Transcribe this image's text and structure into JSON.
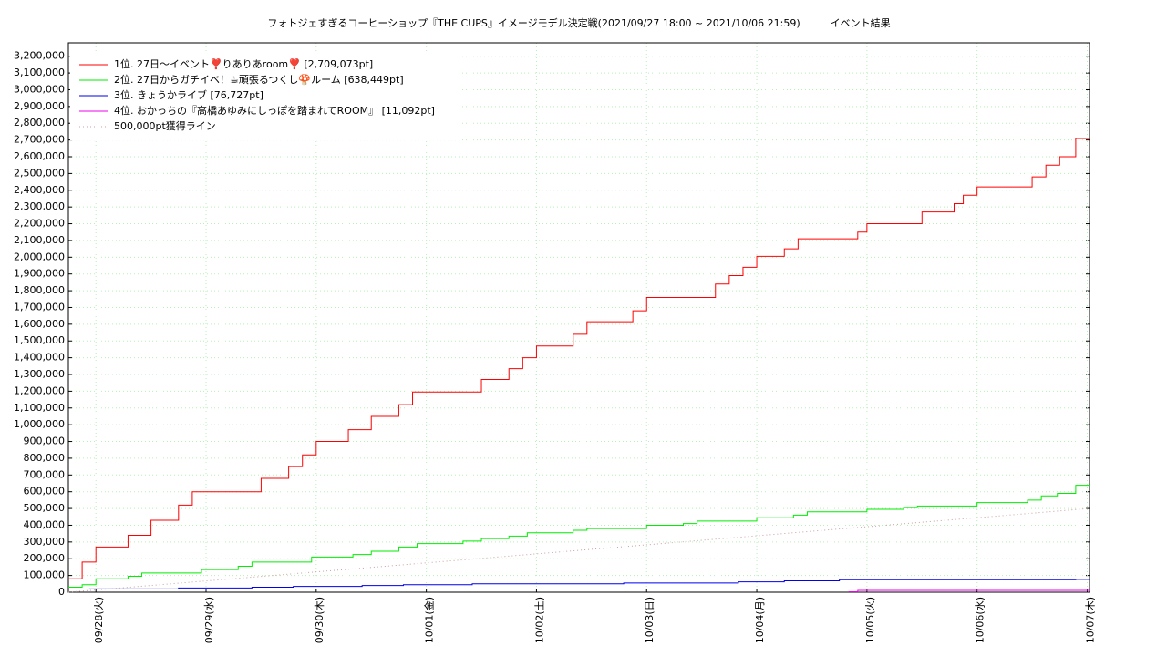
{
  "chart_data": {
    "type": "step-line",
    "title": "フォトジェすぎるコーヒーショップ『THE CUPS』イメージモデル決定戦(2021/09/27 18:00 ~ 2021/10/06 21:59)　　　イベント結果",
    "xlim": [
      "2021-09-27T18:00",
      "2021-10-07T00:30"
    ],
    "xticks": [
      {
        "value": "2021-09-28T00:00",
        "label": "09/28(火)"
      },
      {
        "value": "2021-09-29T00:00",
        "label": "09/29(水)"
      },
      {
        "value": "2021-09-30T00:00",
        "label": "09/30(木)"
      },
      {
        "value": "2021-10-01T00:00",
        "label": "10/01(金)"
      },
      {
        "value": "2021-10-02T00:00",
        "label": "10/02(土)"
      },
      {
        "value": "2021-10-03T00:00",
        "label": "10/03(日)"
      },
      {
        "value": "2021-10-04T00:00",
        "label": "10/04(月)"
      },
      {
        "value": "2021-10-05T00:00",
        "label": "10/05(火)"
      },
      {
        "value": "2021-10-06T00:00",
        "label": "10/06(水)"
      },
      {
        "value": "2021-10-07T00:00",
        "label": "10/07(木)"
      }
    ],
    "ylim": [
      0,
      3280000
    ],
    "yticks": [
      0,
      {
        "value": 100000,
        "label": "100,000"
      },
      {
        "value": 200000,
        "label": "200,000"
      },
      {
        "value": 300000,
        "label": "300,000"
      },
      {
        "value": 400000,
        "label": "400,000"
      },
      {
        "value": 500000,
        "label": "500,000"
      },
      {
        "value": 600000,
        "label": "600,000"
      },
      {
        "value": 700000,
        "label": "700,000"
      },
      {
        "value": 800000,
        "label": "800,000"
      },
      {
        "value": 900000,
        "label": "900,000"
      },
      {
        "value": 1000000,
        "label": "1,000,000"
      },
      {
        "value": 1100000,
        "label": "1,100,000"
      },
      {
        "value": 1200000,
        "label": "1,200,000"
      },
      {
        "value": 1300000,
        "label": "1,300,000"
      },
      {
        "value": 1400000,
        "label": "1,400,000"
      },
      {
        "value": 1500000,
        "label": "1,500,000"
      },
      {
        "value": 1600000,
        "label": "1,600,000"
      },
      {
        "value": 1700000,
        "label": "1,700,000"
      },
      {
        "value": 1800000,
        "label": "1,800,000"
      },
      {
        "value": 1900000,
        "label": "1,900,000"
      },
      {
        "value": 2000000,
        "label": "2,000,000"
      },
      {
        "value": 2100000,
        "label": "2,100,000"
      },
      {
        "value": 2200000,
        "label": "2,200,000"
      },
      {
        "value": 2300000,
        "label": "2,300,000"
      },
      {
        "value": 2400000,
        "label": "2,400,000"
      },
      {
        "value": 2500000,
        "label": "2,500,000"
      },
      {
        "value": 2600000,
        "label": "2,600,000"
      },
      {
        "value": 2700000,
        "label": "2,700,000"
      },
      {
        "value": 2800000,
        "label": "2,800,000"
      },
      {
        "value": 2900000,
        "label": "2,900,000"
      },
      {
        "value": 3000000,
        "label": "3,000,000"
      },
      {
        "value": 3100000,
        "label": "3,100,000"
      },
      {
        "value": 3200000,
        "label": "3,200,000"
      }
    ],
    "grid": true,
    "legend": "upper left",
    "series": [
      {
        "name": "1位. 27日〜イベント❣️りありあroom❣️ [2,709,073pt]",
        "color": "#ff0000",
        "step": true,
        "x": [
          "2021-09-27T18:00",
          "2021-09-27T21:00",
          "2021-09-28T00:00",
          "2021-09-28T07:00",
          "2021-09-28T12:00",
          "2021-09-28T18:00",
          "2021-09-28T21:00",
          "2021-09-29T12:00",
          "2021-09-29T18:00",
          "2021-09-29T21:00",
          "2021-09-30T00:00",
          "2021-09-30T07:00",
          "2021-09-30T12:00",
          "2021-09-30T18:00",
          "2021-09-30T21:00",
          "2021-10-01T12:00",
          "2021-10-01T18:00",
          "2021-10-01T21:00",
          "2021-10-02T00:00",
          "2021-10-02T08:00",
          "2021-10-02T11:00",
          "2021-10-02T21:00",
          "2021-10-03T00:00",
          "2021-10-03T15:00",
          "2021-10-03T18:00",
          "2021-10-03T21:00",
          "2021-10-04T00:00",
          "2021-10-04T06:00",
          "2021-10-04T09:00",
          "2021-10-04T22:00",
          "2021-10-05T00:00",
          "2021-10-05T12:00",
          "2021-10-05T19:00",
          "2021-10-05T21:00",
          "2021-10-06T00:00",
          "2021-10-06T12:00",
          "2021-10-06T15:00",
          "2021-10-06T18:00",
          "2021-10-06T21:30"
        ],
        "values": [
          80000,
          180000,
          270000,
          340000,
          430000,
          520000,
          600000,
          680000,
          750000,
          820000,
          900000,
          970000,
          1050000,
          1120000,
          1195000,
          1270000,
          1335000,
          1400000,
          1470000,
          1540000,
          1615000,
          1680000,
          1760000,
          1840000,
          1890000,
          1940000,
          2005000,
          2050000,
          2110000,
          2150000,
          2200000,
          2270000,
          2320000,
          2370000,
          2420000,
          2480000,
          2550000,
          2600000,
          2709073
        ]
      },
      {
        "name": "2位. 27日からガチイベ！☕頑張るつくし🍄ルーム [638,449pt]",
        "color": "#00ee00",
        "step": true,
        "x": [
          "2021-09-27T18:00",
          "2021-09-27T21:00",
          "2021-09-28T00:00",
          "2021-09-28T07:00",
          "2021-09-28T10:00",
          "2021-09-28T23:00",
          "2021-09-29T07:00",
          "2021-09-29T10:00",
          "2021-09-29T23:00",
          "2021-09-30T08:00",
          "2021-09-30T12:00",
          "2021-09-30T18:00",
          "2021-09-30T22:00",
          "2021-10-01T08:00",
          "2021-10-01T12:00",
          "2021-10-01T18:00",
          "2021-10-01T22:00",
          "2021-10-02T08:00",
          "2021-10-02T11:00",
          "2021-10-03T00:00",
          "2021-10-03T08:00",
          "2021-10-03T11:00",
          "2021-10-04T00:00",
          "2021-10-04T08:00",
          "2021-10-04T11:00",
          "2021-10-05T00:00",
          "2021-10-05T08:00",
          "2021-10-05T11:00",
          "2021-10-06T00:00",
          "2021-10-06T11:00",
          "2021-10-06T14:00",
          "2021-10-06T17:30",
          "2021-10-06T21:30"
        ],
        "values": [
          30000,
          45000,
          80000,
          95000,
          115000,
          135000,
          155000,
          180000,
          210000,
          225000,
          245000,
          270000,
          290000,
          305000,
          320000,
          335000,
          355000,
          370000,
          380000,
          400000,
          410000,
          425000,
          445000,
          460000,
          480000,
          495000,
          505000,
          515000,
          535000,
          550000,
          575000,
          590000,
          638449
        ]
      },
      {
        "name": "3位. きょうかライブ [76,727pt]",
        "color": "#0000ee",
        "step": true,
        "x": [
          "2021-09-27T22:30",
          "2021-09-28T18:00",
          "2021-09-29T10:00",
          "2021-09-29T19:00",
          "2021-09-30T10:00",
          "2021-09-30T19:00",
          "2021-10-01T10:00",
          "2021-10-02T19:00",
          "2021-10-03T20:00",
          "2021-10-04T06:00",
          "2021-10-04T18:00",
          "2021-10-06T21:30"
        ],
        "values": [
          20000,
          25000,
          30000,
          35000,
          40000,
          45000,
          50000,
          55000,
          62000,
          68000,
          75000,
          76727
        ]
      },
      {
        "name": "4位. おかっちの『高橋あゆみにしっぽを踏まれてROOM』 [11,092pt]",
        "color": "#ee00ee",
        "step": true,
        "x": [
          "2021-10-04T20:00",
          "2021-10-04T22:00"
        ],
        "values": [
          3000,
          11092
        ]
      },
      {
        "name": "500,000pt獲得ライン",
        "color": "#c8a0a0",
        "step": false,
        "dash": true,
        "x": [
          "2021-09-27T18:00",
          "2021-10-07T00:30"
        ],
        "values": [
          0,
          500000
        ]
      }
    ]
  }
}
